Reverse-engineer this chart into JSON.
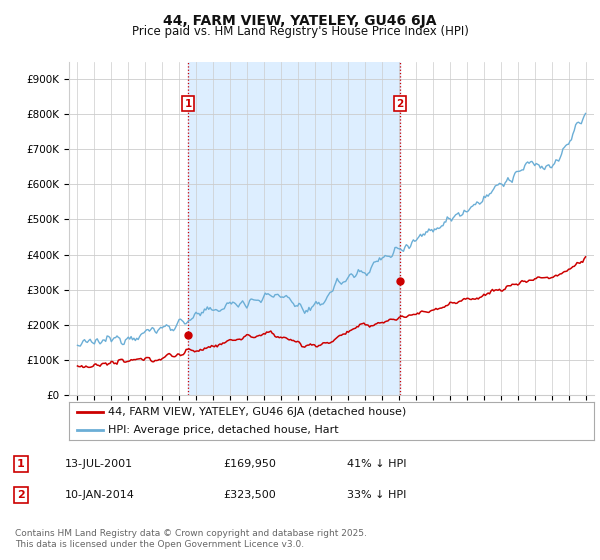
{
  "title": "44, FARM VIEW, YATELEY, GU46 6JA",
  "subtitle": "Price paid vs. HM Land Registry's House Price Index (HPI)",
  "ylim": [
    0,
    950000
  ],
  "yticks": [
    0,
    100000,
    200000,
    300000,
    400000,
    500000,
    600000,
    700000,
    800000,
    900000
  ],
  "ytick_labels": [
    "£0",
    "£100K",
    "£200K",
    "£300K",
    "£400K",
    "£500K",
    "£600K",
    "£700K",
    "£800K",
    "£900K"
  ],
  "hpi_color": "#6baed6",
  "hpi_fill_color": "#ddeeff",
  "price_color": "#cc0000",
  "vline_color": "#cc0000",
  "sale1_year": 2001.53,
  "sale2_year": 2014.03,
  "sale1_price": 169950,
  "sale2_price": 323500,
  "legend_label1": "44, FARM VIEW, YATELEY, GU46 6JA (detached house)",
  "legend_label2": "HPI: Average price, detached house, Hart",
  "annotation1_label": "1",
  "annotation2_label": "2",
  "table_row1": [
    "1",
    "13-JUL-2001",
    "£169,950",
    "41% ↓ HPI"
  ],
  "table_row2": [
    "2",
    "10-JAN-2014",
    "£323,500",
    "33% ↓ HPI"
  ],
  "footnote": "Contains HM Land Registry data © Crown copyright and database right 2025.\nThis data is licensed under the Open Government Licence v3.0.",
  "background_color": "#ffffff",
  "grid_color": "#cccccc",
  "title_fontsize": 10,
  "subtitle_fontsize": 8.5,
  "tick_fontsize": 7.5,
  "legend_fontsize": 8,
  "table_fontsize": 8,
  "footnote_fontsize": 6.5
}
